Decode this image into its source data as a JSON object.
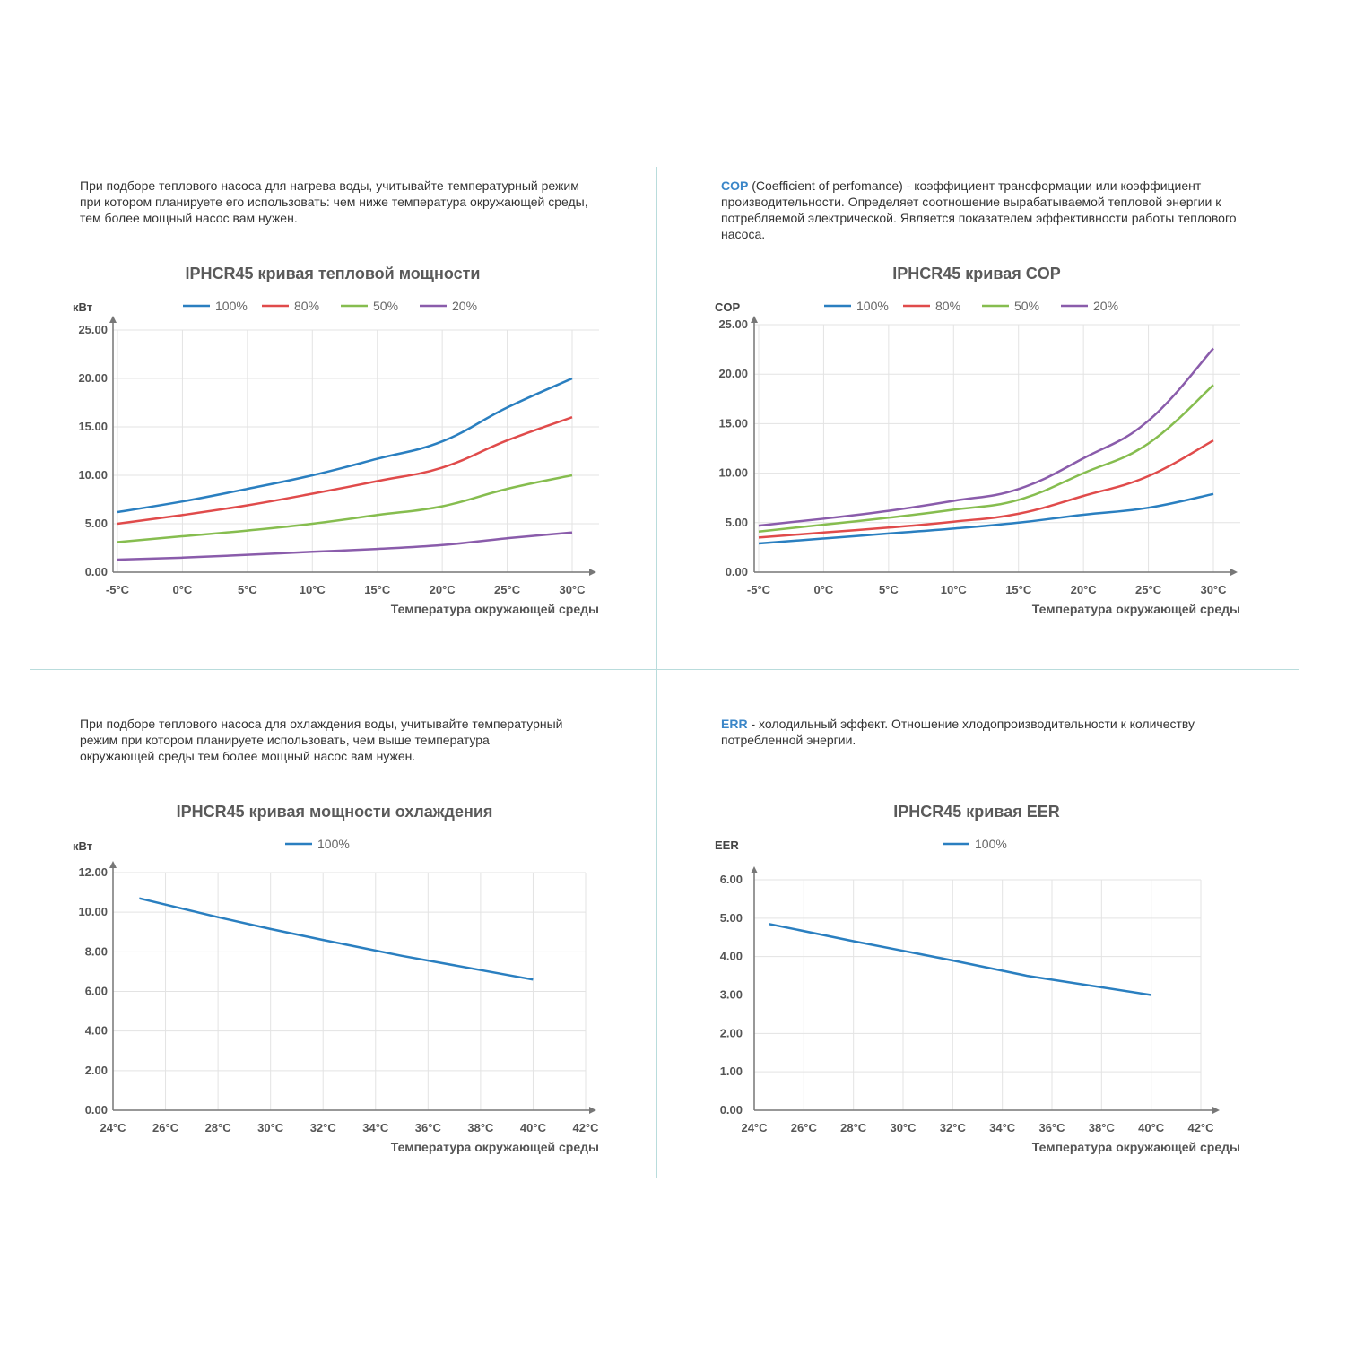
{
  "descriptions": {
    "heat_power": "При подборе теплового насоса для нагрева воды, учитывайте температурный режим при котором планируете его использовать: чем ниже температура окружающей среды, тем более мощный насос вам нужен.",
    "cop_term": "COP",
    "cop_rest": " (Coefficient of perfomance) - коэффициент трансформации или коэффициент производительности. Определяет соотношение вырабатываемой тепловой энергии к потребляемой электрической. Является показателем эффективности работы теплового насоса.",
    "cooling_power": "При подборе теплового насоса для охлаждения воды, учитывайте температурный режим при котором планируете использовать, чем выше температура окружающей среды тем более мощный насос вам нужен.",
    "err_term": "ERR",
    "err_rest": " - холодильный эффект. Отношение хлодопроизводительности к количеству потребленной энергии."
  },
  "colors": {
    "100%": "#2a7fc0",
    "80%": "#e04b4b",
    "50%": "#86bd4f",
    "20%": "#8a5cab"
  },
  "chart_data": [
    {
      "id": "heat",
      "type": "line",
      "title": "IPHCR45 кривая тепловой мощности",
      "ylabel": "кВт",
      "xlabel": "Температура окружающей среды",
      "x_ticks": [
        "-5°C",
        "0°C",
        "5°C",
        "10°C",
        "15°C",
        "20°C",
        "25°C",
        "30°C"
      ],
      "y_ticks": [
        "0.00",
        "5.00",
        "10.00",
        "15.00",
        "20.00",
        "25.00"
      ],
      "xlim": [
        -5,
        30
      ],
      "ylim": [
        0,
        25
      ],
      "grid": true,
      "legend_position": "top",
      "series": [
        {
          "name": "100%",
          "x": [
            -5,
            0,
            5,
            10,
            15,
            20,
            25,
            30
          ],
          "y": [
            6.2,
            7.3,
            8.6,
            10.0,
            11.7,
            13.5,
            17.0,
            20.0
          ]
        },
        {
          "name": "80%",
          "x": [
            -5,
            0,
            5,
            10,
            15,
            20,
            25,
            30
          ],
          "y": [
            5.0,
            5.9,
            6.9,
            8.1,
            9.4,
            10.8,
            13.6,
            16.0
          ]
        },
        {
          "name": "50%",
          "x": [
            -5,
            0,
            5,
            10,
            15,
            20,
            25,
            30
          ],
          "y": [
            3.1,
            3.7,
            4.3,
            5.0,
            5.9,
            6.8,
            8.6,
            10.0
          ]
        },
        {
          "name": "20%",
          "x": [
            -5,
            0,
            5,
            10,
            15,
            20,
            25,
            30
          ],
          "y": [
            1.3,
            1.5,
            1.8,
            2.1,
            2.4,
            2.8,
            3.5,
            4.1
          ]
        }
      ]
    },
    {
      "id": "cop",
      "type": "line",
      "title": "IPHCR45 кривая COP",
      "ylabel": "COP",
      "xlabel": "Температура окружающей среды",
      "x_ticks": [
        "-5°C",
        "0°C",
        "5°C",
        "10°C",
        "15°C",
        "20°C",
        "25°C",
        "30°C"
      ],
      "y_ticks": [
        "0.00",
        "5.00",
        "10.00",
        "15.00",
        "20.00",
        "25.00"
      ],
      "xlim": [
        -5,
        30
      ],
      "ylim": [
        0,
        25
      ],
      "grid": true,
      "legend_position": "top",
      "series": [
        {
          "name": "100%",
          "x": [
            -5,
            0,
            5,
            10,
            15,
            20,
            25,
            30
          ],
          "y": [
            2.9,
            3.4,
            3.9,
            4.4,
            5.0,
            5.8,
            6.5,
            7.9
          ]
        },
        {
          "name": "80%",
          "x": [
            -5,
            0,
            5,
            10,
            15,
            20,
            25,
            30
          ],
          "y": [
            3.5,
            4.0,
            4.5,
            5.1,
            5.9,
            7.7,
            9.7,
            13.3
          ]
        },
        {
          "name": "50%",
          "x": [
            -5,
            0,
            5,
            10,
            15,
            20,
            25,
            30
          ],
          "y": [
            4.1,
            4.8,
            5.5,
            6.3,
            7.3,
            10.0,
            13.0,
            18.9
          ]
        },
        {
          "name": "20%",
          "x": [
            -5,
            0,
            5,
            10,
            15,
            20,
            25,
            30
          ],
          "y": [
            4.7,
            5.4,
            6.2,
            7.2,
            8.4,
            11.5,
            15.3,
            22.6
          ]
        }
      ]
    },
    {
      "id": "cool",
      "type": "line",
      "title": "IPHCR45 кривая мощности охлаждения",
      "ylabel": "кВт",
      "xlabel": "Температура окружающей среды",
      "x_ticks": [
        "24°C",
        "26°C",
        "28°C",
        "30°C",
        "32°C",
        "34°C",
        "36°C",
        "38°C",
        "40°C",
        "42°C"
      ],
      "y_ticks": [
        "0.00",
        "2.00",
        "4.00",
        "6.00",
        "8.00",
        "10.00",
        "12.00"
      ],
      "xlim": [
        24,
        42
      ],
      "ylim": [
        0,
        12
      ],
      "grid": true,
      "legend_position": "top",
      "series": [
        {
          "name": "100%",
          "x": [
            25,
            28,
            30,
            32,
            35,
            40
          ],
          "y": [
            10.7,
            9.75,
            9.15,
            8.6,
            7.8,
            6.6
          ]
        }
      ]
    },
    {
      "id": "eer",
      "type": "line",
      "title": "IPHCR45 кривая EER",
      "ylabel": "EER",
      "xlabel": "Температура окружающей среды",
      "x_ticks": [
        "24°C",
        "26°C",
        "28°C",
        "30°C",
        "32°C",
        "34°C",
        "36°C",
        "38°C",
        "40°C",
        "42°C"
      ],
      "y_ticks": [
        "0.00",
        "1.00",
        "2.00",
        "3.00",
        "4.00",
        "5.00",
        "6.00"
      ],
      "xlim": [
        24,
        42
      ],
      "ylim": [
        0,
        6
      ],
      "grid": true,
      "legend_position": "top",
      "series": [
        {
          "name": "100%",
          "x": [
            24.6,
            28,
            30,
            32,
            35,
            40
          ],
          "y": [
            4.85,
            4.4,
            4.15,
            3.9,
            3.5,
            3.0
          ]
        }
      ]
    }
  ]
}
